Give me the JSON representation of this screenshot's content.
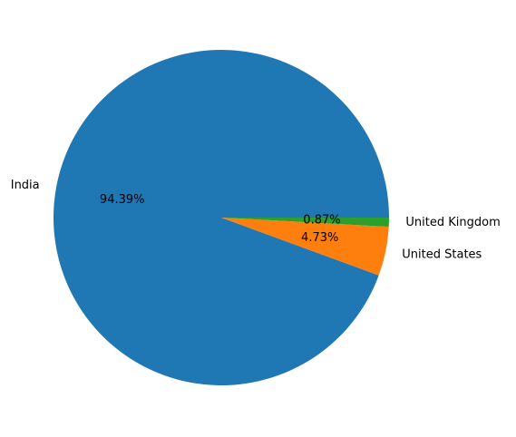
{
  "chart_data": {
    "type": "pie",
    "title": "",
    "slices": [
      {
        "label": "India",
        "value": 94.39,
        "pct_label": "94.39%",
        "color": "#1f77b4"
      },
      {
        "label": "United States",
        "value": 4.73,
        "pct_label": "4.73%",
        "color": "#ff7f0e"
      },
      {
        "label": "United Kingdom",
        "value": 0.87,
        "pct_label": "0.87%",
        "color": "#2ca02c"
      }
    ],
    "start_angle_deg": 0,
    "direction": "counterclockwise",
    "legend": "none"
  }
}
